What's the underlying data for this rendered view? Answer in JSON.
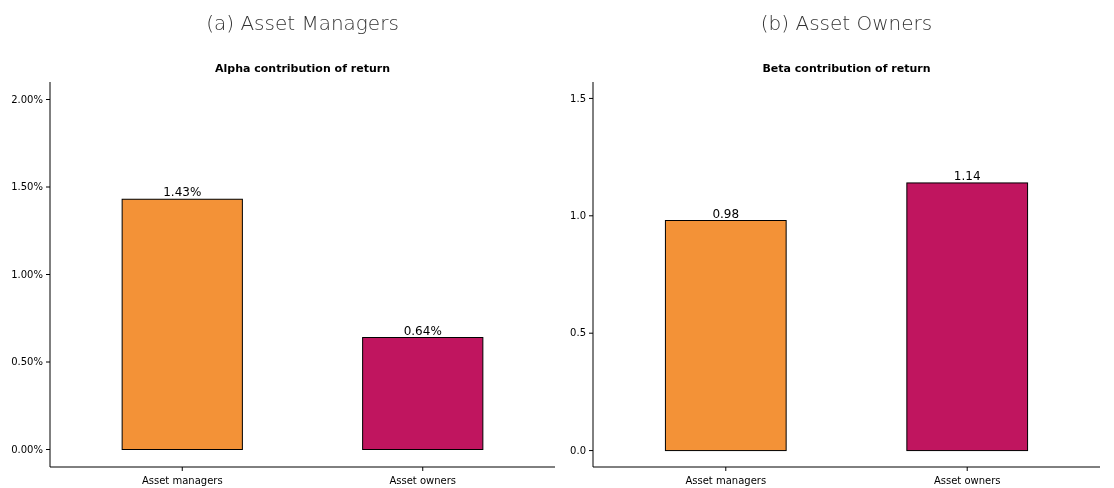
{
  "chart_data": [
    {
      "type": "bar",
      "title": "(a) Asset Managers",
      "subtitle": "Alpha contribution of return",
      "categories": [
        "Asset managers",
        "Asset owners"
      ],
      "values": [
        1.43,
        0.64
      ],
      "colors": [
        "#f39237",
        "#c0155f"
      ],
      "value_labels": [
        "1.43%",
        "0.64%"
      ],
      "ylim": [
        -0.1,
        2.1
      ],
      "yticks": [
        {
          "value": 0,
          "label": "0.00%"
        },
        {
          "value": 0.5,
          "label": "0.50%"
        },
        {
          "value": 1,
          "label": "1.00%"
        },
        {
          "value": 1.5,
          "label": "1.50%"
        },
        {
          "value": 2,
          "label": "2.00%"
        }
      ]
    },
    {
      "type": "bar",
      "title": "(b) Asset Owners",
      "subtitle": "Beta contribution of return",
      "categories": [
        "Asset managers",
        "Asset owners"
      ],
      "values": [
        0.98,
        1.14
      ],
      "colors": [
        "#f39237",
        "#c0155f"
      ],
      "data_labels": true,
      "ylim": [
        -0.07,
        1.57
      ],
      "yticks": [
        {
          "value": 0,
          "label": "0.0"
        },
        {
          "value": 0.5,
          "label": "0.5"
        },
        {
          "value": 1,
          "label": "1.0"
        },
        {
          "value": 1.5,
          "label": "1.5"
        }
      ]
    }
  ]
}
